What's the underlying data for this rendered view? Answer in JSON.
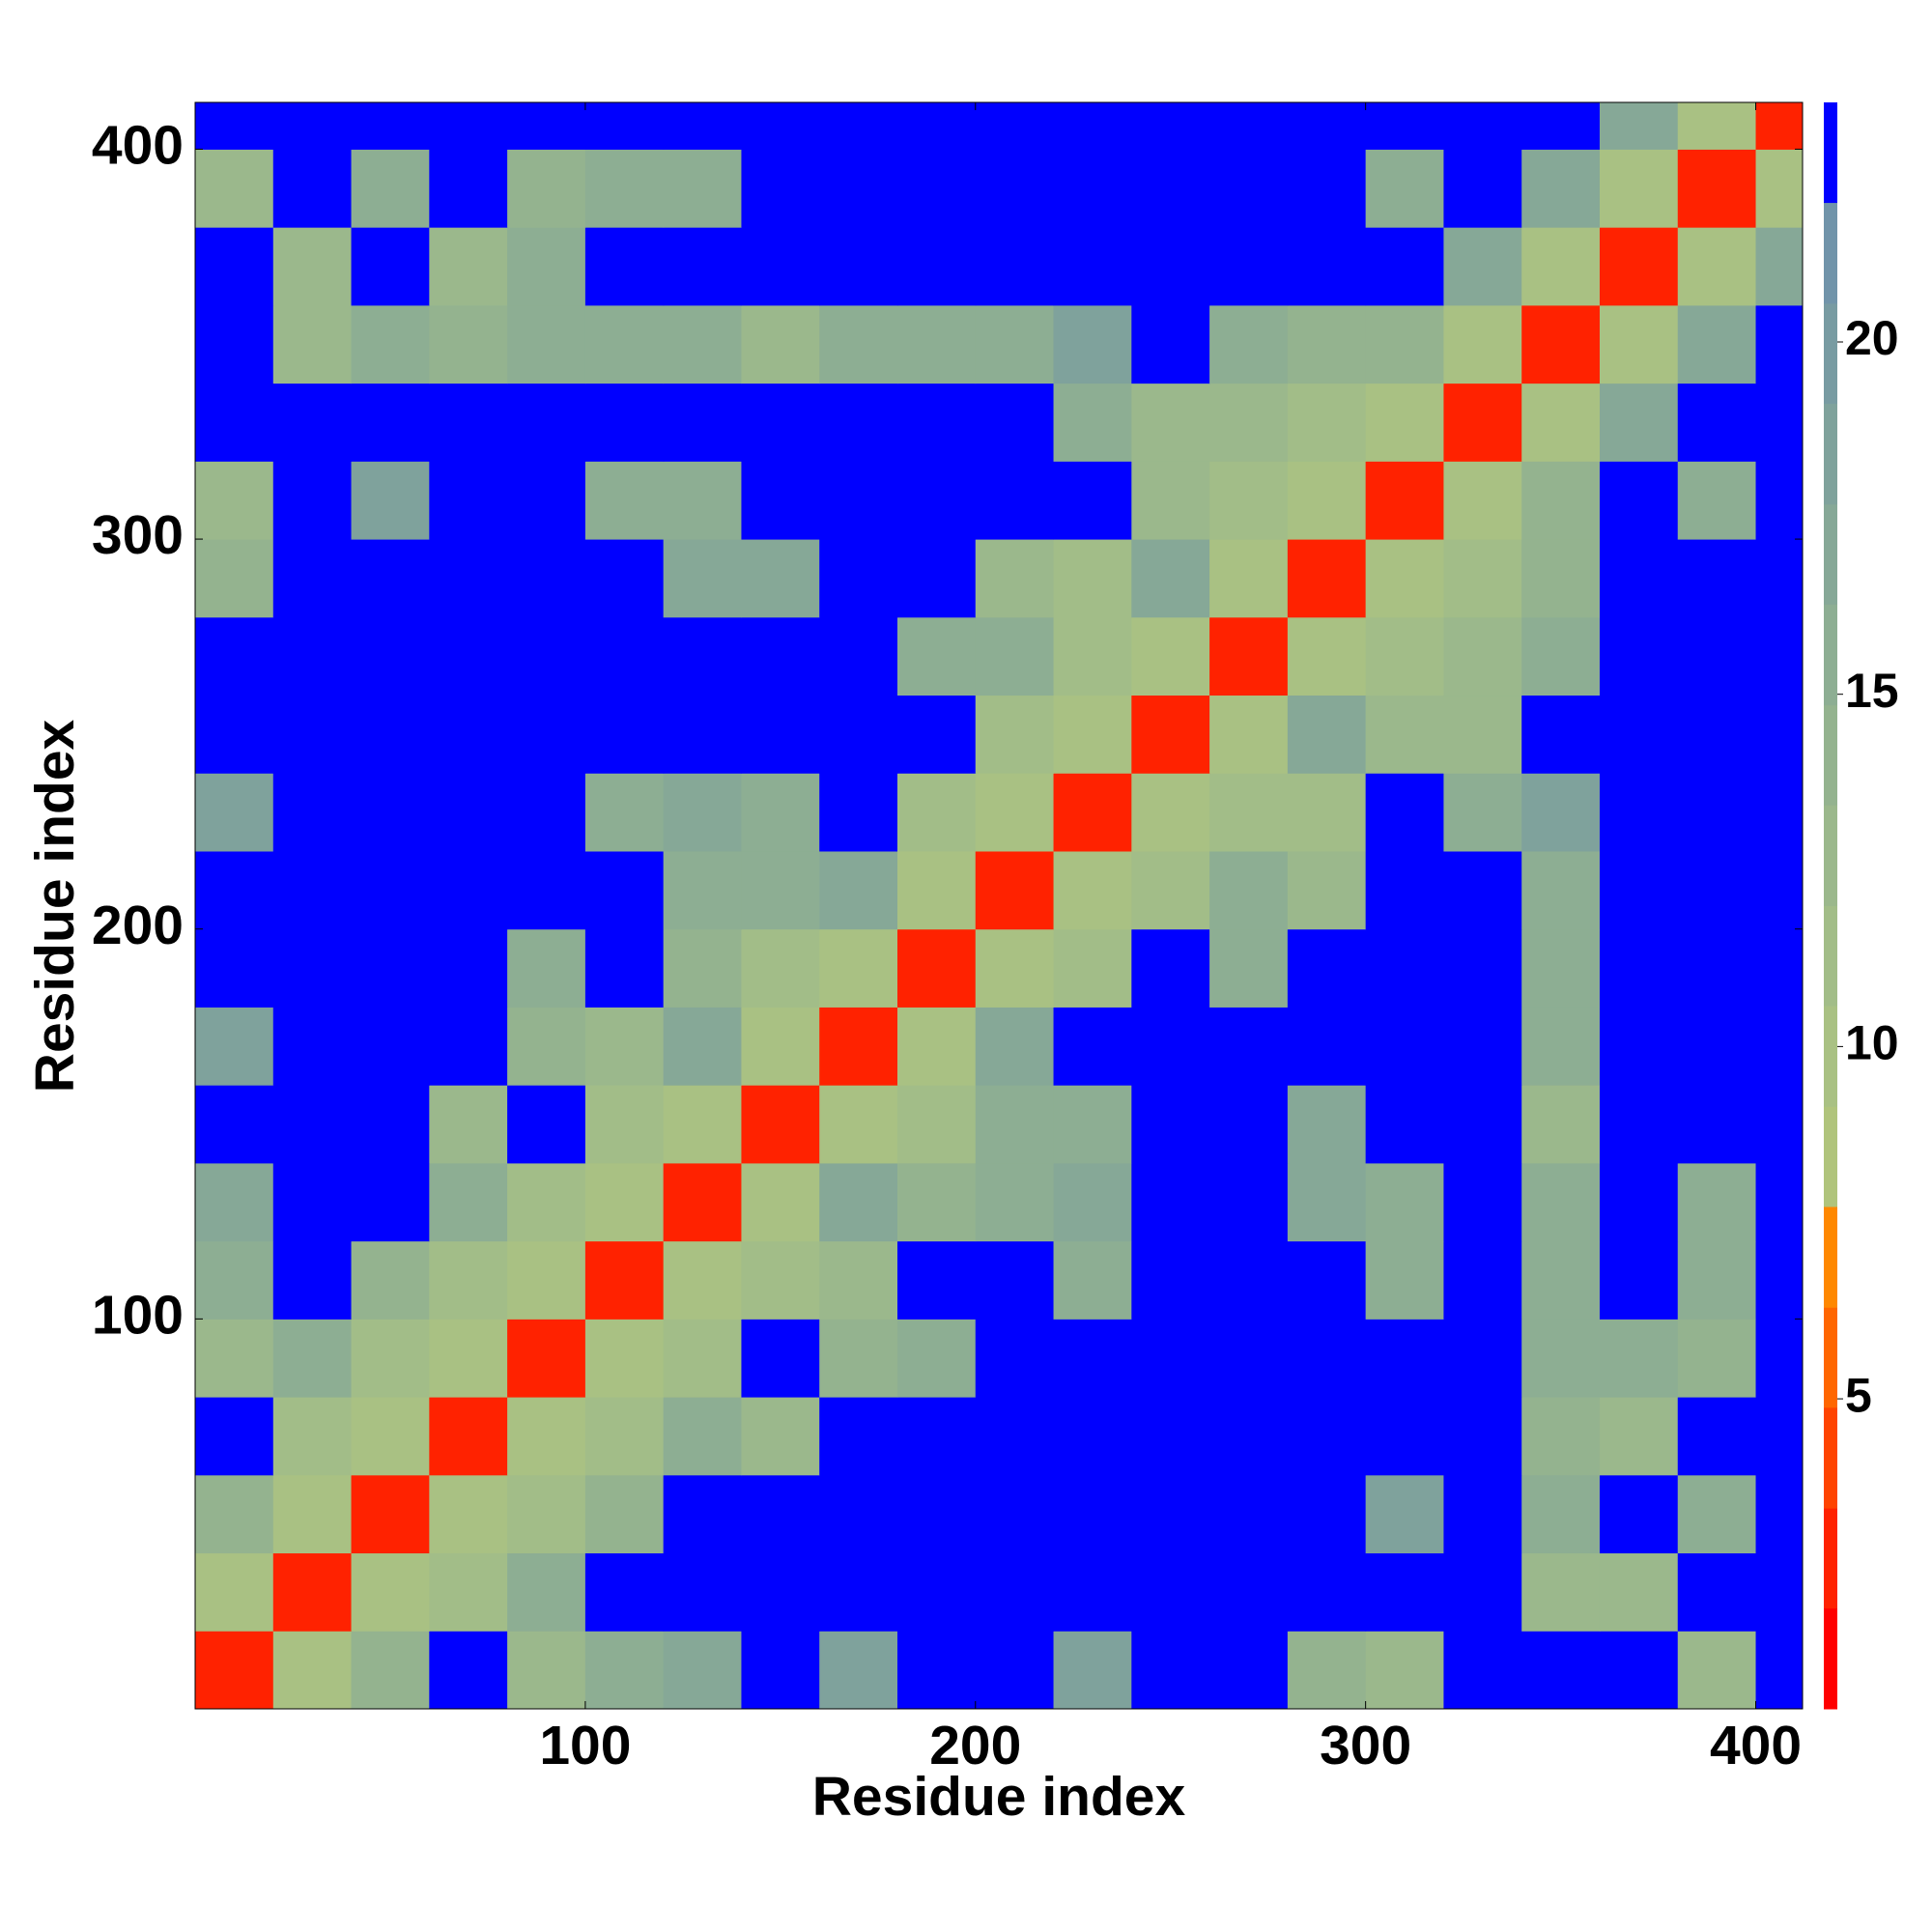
{
  "chart_data": {
    "type": "heatmap",
    "xlabel": "Residue index",
    "ylabel": "Residue index",
    "x": [
      10,
      30,
      50,
      70,
      90,
      110,
      130,
      150,
      170,
      190,
      210,
      230,
      250,
      270,
      290,
      310,
      330,
      350,
      370,
      390,
      410
    ],
    "y": [
      10,
      30,
      50,
      70,
      90,
      110,
      130,
      150,
      170,
      190,
      210,
      230,
      250,
      270,
      290,
      310,
      330,
      350,
      370,
      390,
      410
    ],
    "z": [
      [
        3,
        10,
        14,
        23,
        13,
        15,
        17,
        23,
        19,
        23,
        23,
        19,
        23,
        23,
        14,
        13,
        23,
        23,
        23,
        13,
        23
      ],
      [
        10,
        3,
        10,
        12,
        15,
        23,
        23,
        23,
        23,
        23,
        23,
        23,
        23,
        23,
        23,
        23,
        23,
        13,
        13,
        23,
        23
      ],
      [
        14,
        10,
        3,
        10,
        12,
        14,
        23,
        23,
        23,
        23,
        23,
        23,
        23,
        23,
        23,
        19,
        23,
        15,
        23,
        15,
        23
      ],
      [
        23,
        12,
        10,
        3,
        10,
        12,
        15,
        13,
        23,
        23,
        23,
        23,
        23,
        23,
        23,
        23,
        23,
        14,
        13,
        23,
        23
      ],
      [
        13,
        15,
        12,
        10,
        3,
        10,
        12,
        23,
        14,
        15,
        23,
        23,
        23,
        23,
        23,
        23,
        23,
        16,
        15,
        14,
        23
      ],
      [
        15,
        23,
        14,
        12,
        10,
        3,
        10,
        11,
        13,
        23,
        23,
        15,
        23,
        23,
        23,
        15,
        23,
        16,
        23,
        16,
        23
      ],
      [
        17,
        23,
        23,
        15,
        12,
        10,
        3,
        10,
        17,
        14,
        16,
        17,
        23,
        23,
        17,
        16,
        23,
        16,
        23,
        15,
        23
      ],
      [
        23,
        23,
        23,
        13,
        23,
        11,
        10,
        3,
        10,
        12,
        15,
        16,
        23,
        23,
        17,
        23,
        23,
        13,
        23,
        23,
        23
      ],
      [
        19,
        23,
        23,
        23,
        14,
        13,
        17,
        10,
        3,
        10,
        17,
        23,
        23,
        23,
        23,
        23,
        23,
        16,
        23,
        23,
        23
      ],
      [
        23,
        23,
        23,
        23,
        15,
        23,
        14,
        12,
        10,
        3,
        10,
        12,
        23,
        15,
        23,
        23,
        23,
        15,
        23,
        23,
        23
      ],
      [
        23,
        23,
        23,
        23,
        23,
        23,
        16,
        15,
        17,
        10,
        3,
        10,
        11,
        15,
        13,
        23,
        23,
        15,
        23,
        23,
        23
      ],
      [
        19,
        23,
        23,
        23,
        23,
        15,
        17,
        16,
        23,
        12,
        10,
        3,
        10,
        11,
        12,
        23,
        15,
        18,
        23,
        23,
        23
      ],
      [
        23,
        23,
        23,
        23,
        23,
        23,
        23,
        23,
        23,
        23,
        11,
        10,
        3,
        10,
        17,
        13,
        13,
        23,
        23,
        23,
        23
      ],
      [
        23,
        23,
        23,
        23,
        23,
        23,
        23,
        23,
        23,
        15,
        15,
        11,
        10,
        3,
        10,
        11,
        13,
        15,
        23,
        23,
        23
      ],
      [
        14,
        23,
        23,
        23,
        23,
        23,
        17,
        17,
        23,
        23,
        13,
        12,
        17,
        10,
        3,
        10,
        11,
        14,
        23,
        23,
        23
      ],
      [
        13,
        23,
        19,
        23,
        23,
        15,
        16,
        23,
        23,
        23,
        23,
        23,
        13,
        11,
        10,
        3,
        10,
        14,
        23,
        16,
        23
      ],
      [
        23,
        23,
        23,
        23,
        23,
        23,
        23,
        23,
        23,
        23,
        23,
        15,
        13,
        13,
        11,
        10,
        3,
        10,
        17,
        23,
        23
      ],
      [
        23,
        13,
        15,
        14,
        16,
        16,
        16,
        13,
        16,
        15,
        15,
        18,
        23,
        15,
        14,
        14,
        10,
        3,
        10,
        17,
        23
      ],
      [
        23,
        13,
        23,
        13,
        15,
        23,
        23,
        23,
        23,
        23,
        23,
        23,
        23,
        23,
        23,
        23,
        17,
        10,
        3,
        10,
        17
      ],
      [
        13,
        23,
        15,
        23,
        14,
        16,
        15,
        23,
        23,
        23,
        23,
        23,
        23,
        23,
        23,
        16,
        23,
        17,
        10,
        3,
        10
      ],
      [
        23,
        23,
        23,
        23,
        23,
        23,
        23,
        23,
        23,
        23,
        23,
        23,
        23,
        23,
        23,
        23,
        23,
        23,
        17,
        10,
        3
      ]
    ],
    "xlim": [
      0,
      412
    ],
    "ylim": [
      0,
      412
    ],
    "xticks": [
      100,
      200,
      300,
      400
    ],
    "yticks": [
      100,
      200,
      300,
      400
    ],
    "colorbar": {
      "levels": [
        0.6,
        2.03,
        3.45,
        4.88,
        6.3,
        7.73,
        9.15,
        10.58,
        12.0,
        13.43,
        14.85,
        16.28,
        17.7,
        19.13,
        20.55,
        21.98,
        23.4
      ],
      "colors": [
        "#ff0000",
        "#ff2200",
        "#ff4400",
        "#ff6600",
        "#ff8800",
        "#b0c47c",
        "#a9c183",
        "#a2bd88",
        "#9bb88c",
        "#94b38f",
        "#8dae93",
        "#86a897",
        "#7fa29c",
        "#789ba2",
        "#7194aa",
        "#0000ff"
      ],
      "ticks": [
        5,
        10,
        15,
        20
      ]
    }
  }
}
